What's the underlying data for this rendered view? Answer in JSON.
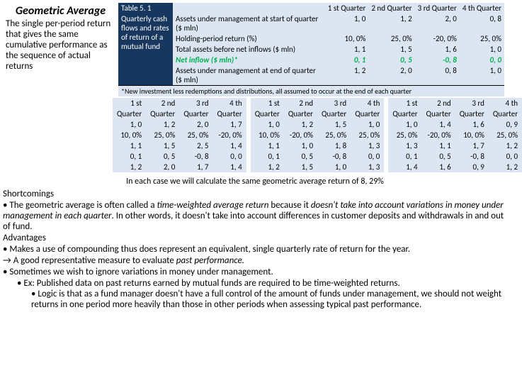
{
  "heading": "Geometric Average",
  "definition": "The single per-period return that gives the same cumulative performance as the sequence of actual returns",
  "tableTitle": "Table 5. 1",
  "tableDesc": "Quarterly cash flows and rates of return of a mutual fund",
  "cols": {
    "q1": "1 st Quarter",
    "q2": "2 nd Quarter",
    "q3": "3 rd Quarter",
    "q4": "4 th Quarter"
  },
  "rows": {
    "r1": {
      "label": "Assets under management at start of quarter ($ mln)",
      "v": [
        "1, 0",
        "1, 2",
        "2, 0",
        "0, 8"
      ]
    },
    "r2": {
      "label": "Holding-period return (%)",
      "v": [
        "10, 0%",
        "25, 0%",
        "-20, 0%",
        "25, 0%"
      ]
    },
    "r3": {
      "label": "Total assets before net inflows ($ mln)",
      "v": [
        "1, 1",
        "1, 5",
        "1, 6",
        "1, 0"
      ]
    },
    "r4": {
      "label": "Net inflow ($ mln)*",
      "v": [
        "0, 1",
        "0, 5",
        "-0, 8",
        "0, 0"
      ]
    },
    "r5": {
      "label": "Assets under management at end of quarter ($ mln)",
      "v": [
        "1, 2",
        "2, 0",
        "0, 8",
        "1, 0"
      ]
    }
  },
  "footnote": "*New investment less redemptions and distributions, all assumed to occur at the end of each quarter",
  "smallTables": [
    {
      "head": [
        "1 st",
        "2 nd",
        "3 rd",
        "4 th"
      ],
      "sub": "Quarter",
      "rows": [
        [
          "1, 0",
          "1, 2",
          "2, 0",
          "1, 7"
        ],
        [
          "10, 0%",
          "25, 0%",
          "25, 0%",
          "-20, 0%"
        ],
        [
          "1, 1",
          "1, 5",
          "2, 5",
          "1, 4"
        ],
        [
          "0, 1",
          "0, 5",
          "-0, 8",
          "0, 0"
        ],
        [
          "1, 2",
          "2, 0",
          "1, 7",
          "1, 4"
        ]
      ]
    },
    {
      "head": [
        "1 st",
        "2 nd",
        "3 rd",
        "4 th"
      ],
      "sub": "Quarter",
      "rows": [
        [
          "1, 0",
          "1, 2",
          "1, 5",
          "1, 0"
        ],
        [
          "10, 0%",
          "-20, 0%",
          "25, 0%",
          "25, 0%"
        ],
        [
          "1, 1",
          "1, 0",
          "1, 8",
          "1, 3"
        ],
        [
          "0, 1",
          "0, 5",
          "-0, 8",
          "0, 0"
        ],
        [
          "1, 2",
          "1, 5",
          "1, 0",
          "1, 3"
        ]
      ]
    },
    {
      "head": [
        "1 st",
        "2 nd",
        "3 rd",
        "4 th"
      ],
      "sub": "Quarter",
      "rows": [
        [
          "1, 0",
          "1, 4",
          "1, 6",
          "0, 9"
        ],
        [
          "25, 0%",
          "-20, 0%",
          "10, 0%",
          "25, 0%"
        ],
        [
          "1, 3",
          "1, 1",
          "1, 7",
          "1, 2"
        ],
        [
          "0, 1",
          "0, 5",
          "-0, 8",
          "0, 0"
        ],
        [
          "1, 4",
          "1, 6",
          "0, 9",
          "1, 2"
        ]
      ]
    }
  ],
  "calcLine": "In each case we will calculate the same geometric average return of 8, 29%",
  "body": {
    "short": "Shortcomings",
    "b1a": "• The geometric average is often called a ",
    "b1b": "time-weighted average return",
    "b1c": " because it ",
    "b1d": "doesn't take into account variations in money under management in each quarter",
    "b1e": ".  In other words, it doesn't take into account differences in customer deposits and withdrawals in and out of fund.",
    "adv": "Advantages",
    "b2": "• Makes a use of compounding thus does represent an equivalent, single quarterly rate of return for the year.",
    "b3a": "→ A good representative measure to evaluate ",
    "b3b": "past performance.",
    "b4": "• Sometimes we wish to ignore variations in money under management.",
    "b5": "• Ex: Published data on past returns earned by mutual funds are required to be time-weighted returns.",
    "b6": "• Logic is that as a fund manager doesn't have a full control of the amount of funds under management, we should not weight returns in one period more heavily than those in other periods when assessing typical past performance."
  }
}
